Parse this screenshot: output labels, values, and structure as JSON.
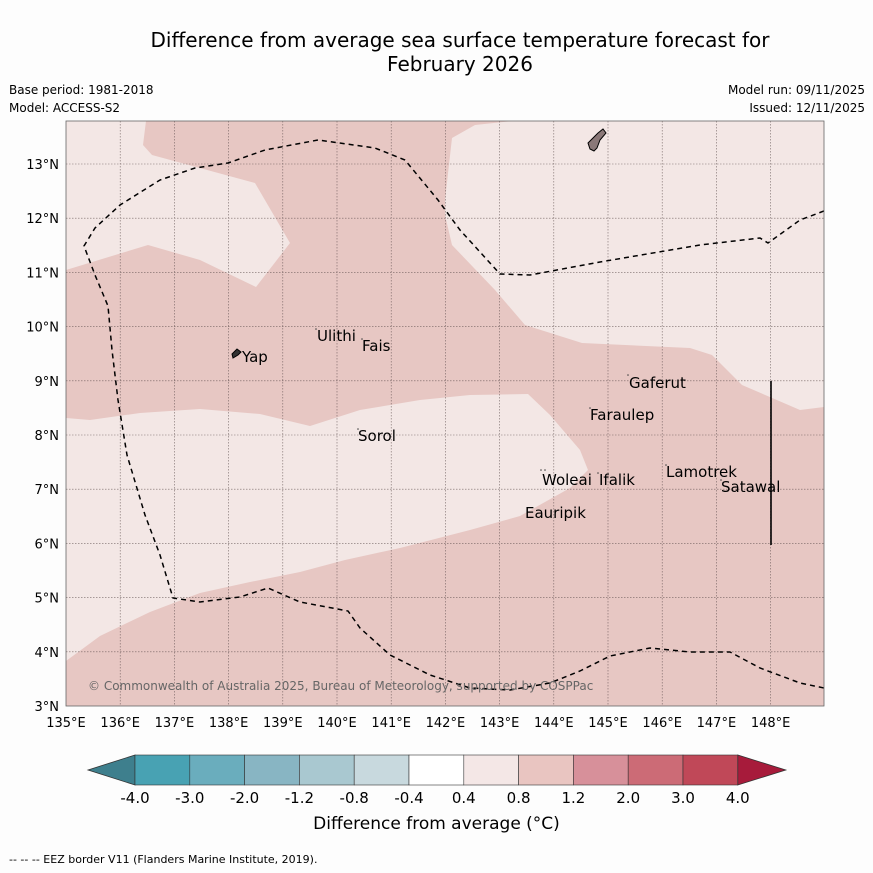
{
  "title_line1": "Difference from average sea surface temperature forecast for",
  "title_line2": "February 2026",
  "base_period": "Base period: 1981-2018",
  "model": "Model: ACCESS-S2",
  "model_run": "Model run: 09/11/2025",
  "issued": "Issued: 12/11/2025",
  "copyright": "© Commonwealth of Australia 2025, Bureau of Meteorology, supported by COSPPac",
  "map": {
    "lon_ticks": [
      "135°E",
      "136°E",
      "137°E",
      "138°E",
      "139°E",
      "140°E",
      "141°E",
      "142°E",
      "143°E",
      "144°E",
      "145°E",
      "146°E",
      "147°E",
      "148°E"
    ],
    "lat_ticks": [
      "3°N",
      "4°N",
      "5°N",
      "6°N",
      "7°N",
      "8°N",
      "9°N",
      "10°N",
      "11°N",
      "12°N",
      "13°N"
    ],
    "places": [
      {
        "name": "Ulithi"
      },
      {
        "name": "Fais"
      },
      {
        "name": "Yap"
      },
      {
        "name": "Gaferut"
      },
      {
        "name": "Faraulep"
      },
      {
        "name": "Sorol"
      },
      {
        "name": "Woleai"
      },
      {
        "name": "Ifalik"
      },
      {
        "name": "Lamotrek"
      },
      {
        "name": "Satawal"
      },
      {
        "name": "Eauripik"
      }
    ]
  },
  "colorbar": {
    "ticks": [
      "-4.0",
      "-3.0",
      "-2.0",
      "-1.2",
      "-0.8",
      "-0.4",
      "0.4",
      "0.8",
      "1.2",
      "2.0",
      "3.0",
      "4.0"
    ],
    "colors": [
      "#3e7f8d",
      "#48a2b3",
      "#6aadbd",
      "#88b5c3",
      "#a9c8d0",
      "#c8d9de",
      "#ffffff",
      "#f4e7e6",
      "#e9c5c1",
      "#d7909a",
      "#cc6b76",
      "#c04858",
      "#a71b3b"
    ],
    "title": "Difference from average (°C)"
  },
  "legend": "--  --  -- EEZ border V11 (Flanders Marine Institute, 2019)."
}
